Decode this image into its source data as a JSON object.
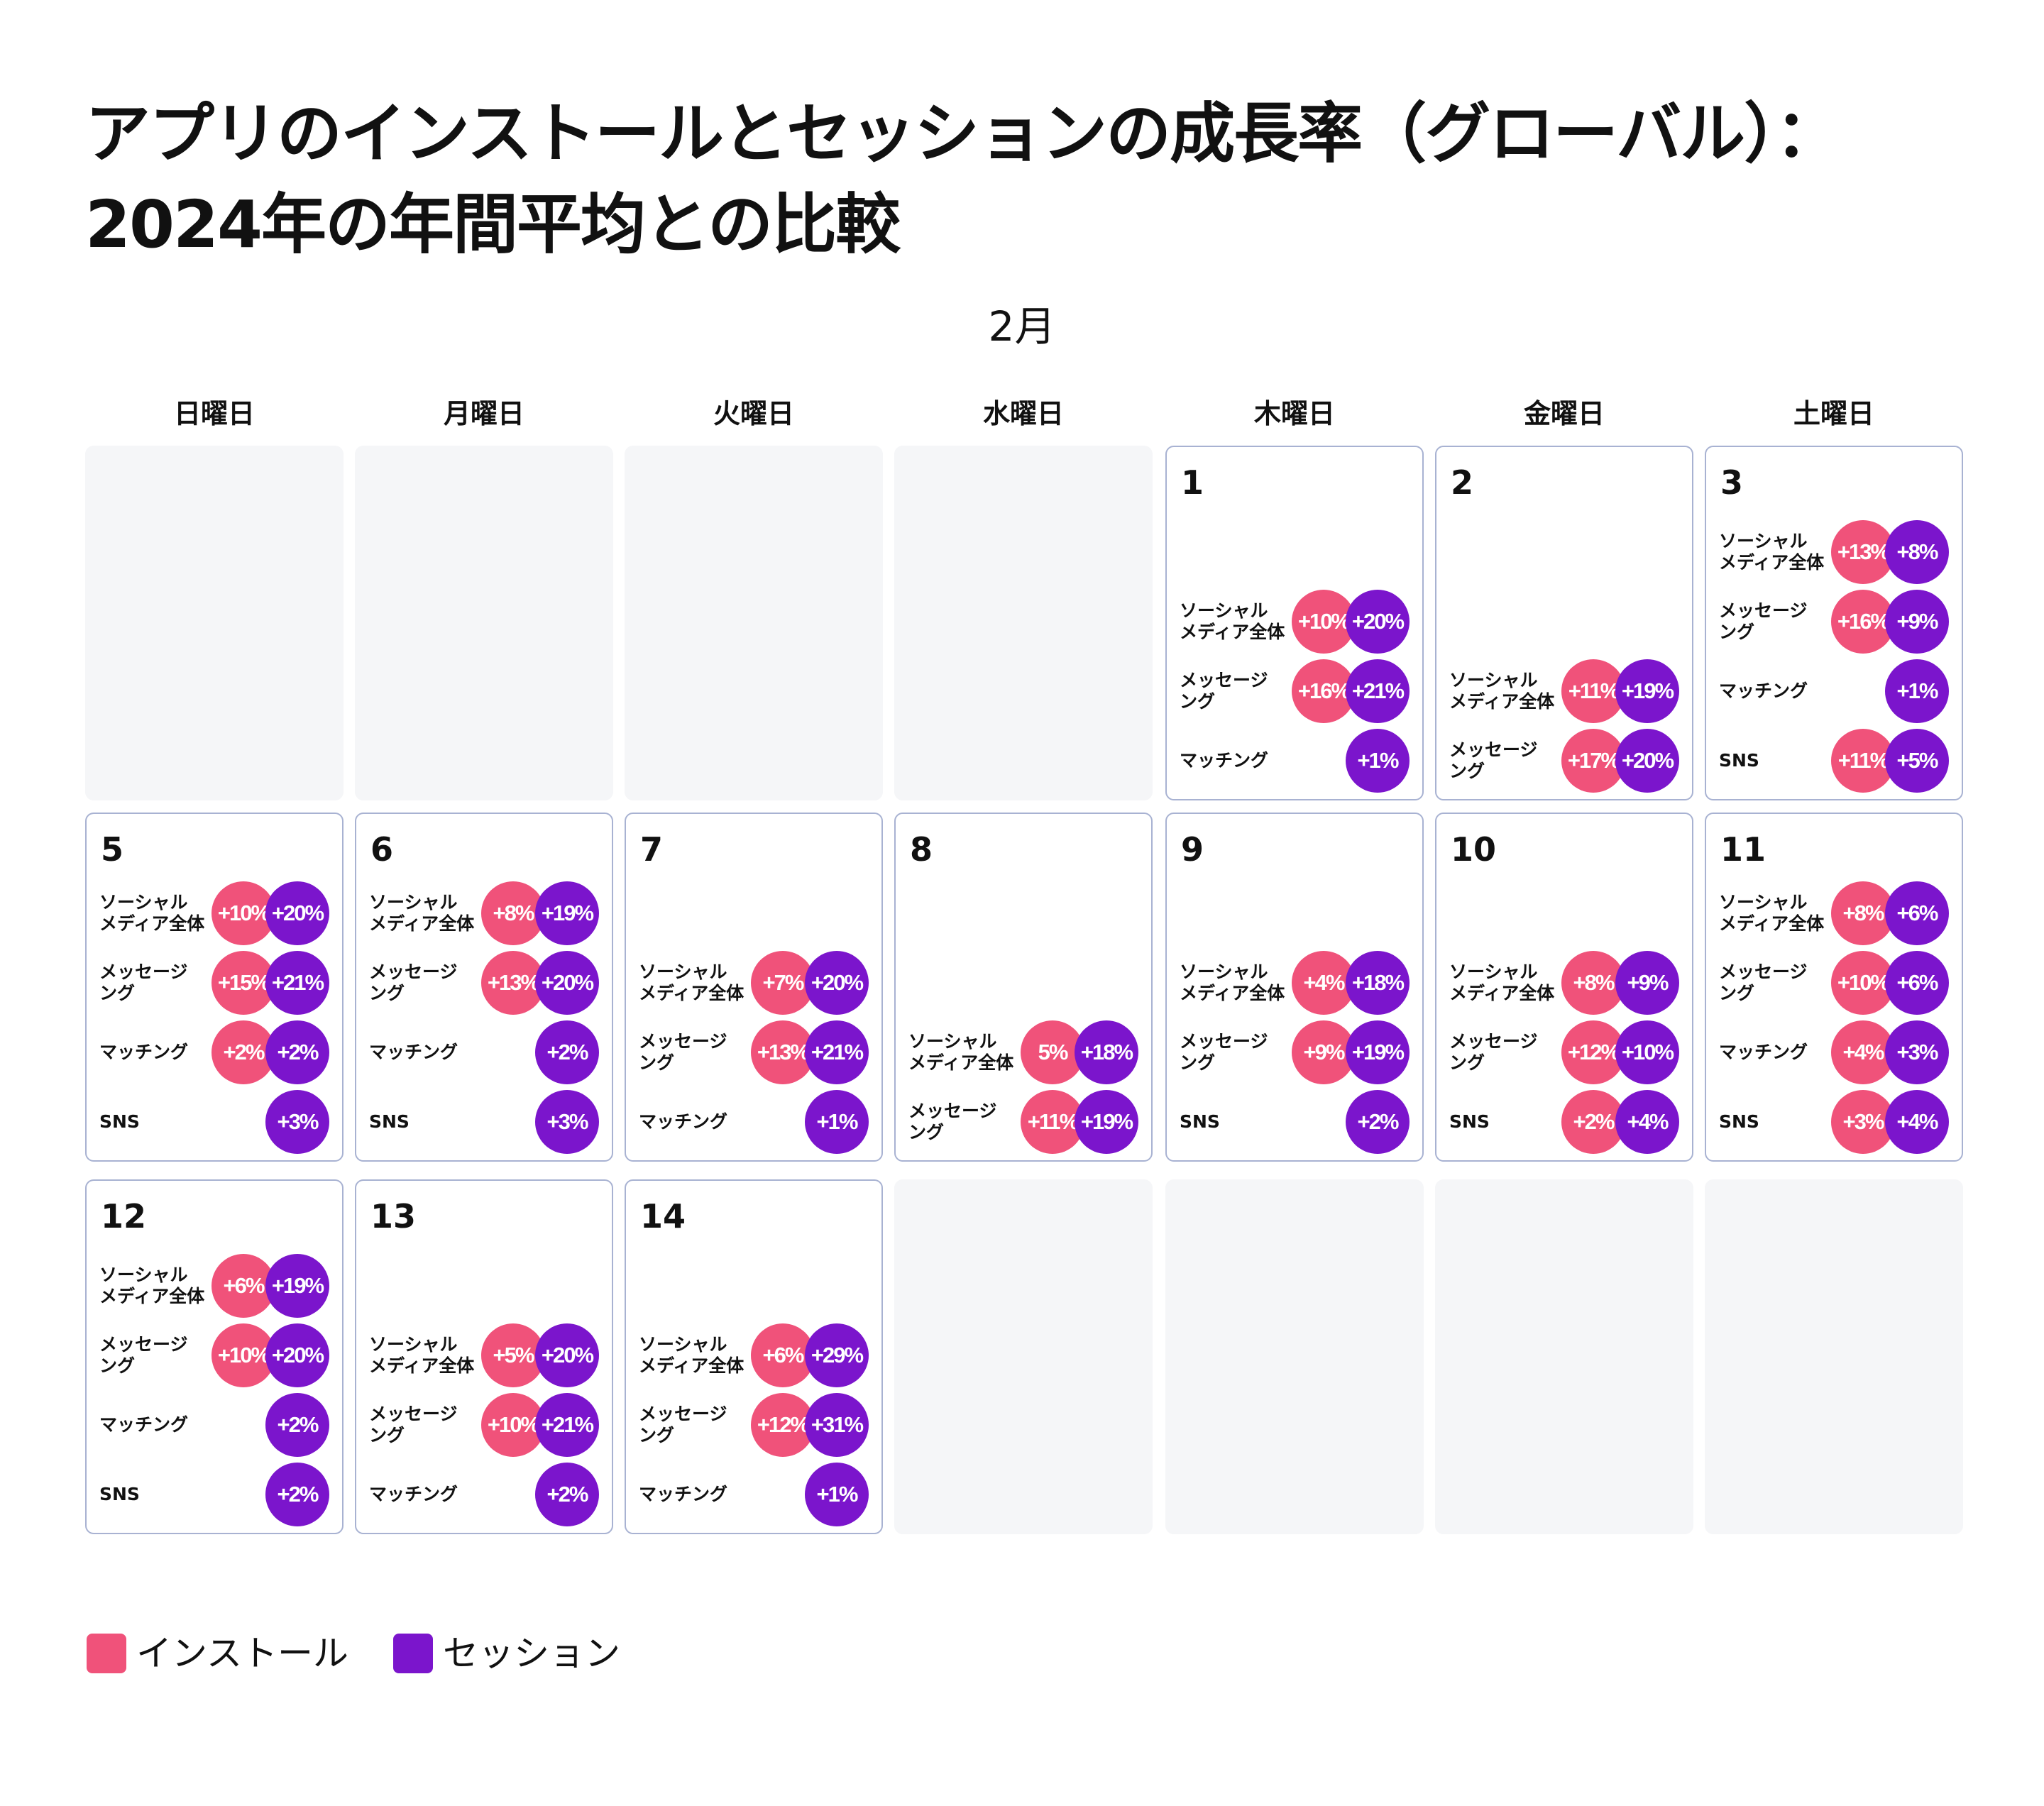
{
  "title_lines": [
    "アプリのインストールとセッションの成長率（グローバル）：",
    "2024年の年間平均との比較"
  ],
  "month": "2月",
  "weekdays": [
    "日曜日",
    "月曜日",
    "火曜日",
    "水曜日",
    "木曜日",
    "金曜日",
    "土曜日"
  ],
  "colors": {
    "install": "#f0527a",
    "session": "#7b15cc",
    "empty_cell": "#f5f6f8",
    "cell_border": "#a8b2d2"
  },
  "legend": [
    {
      "label": "インストール",
      "color": "#f0527a"
    },
    {
      "label": "セッション",
      "color": "#7b15cc"
    }
  ],
  "chart_data": {
    "type": "table",
    "title": "アプリのインストールとセッションの成長率（グローバル）：2024年の年間平均との比較",
    "month": "2月",
    "category_labels": {
      "social": "ソーシャル\nメディア全体",
      "messaging": "メッセージ\nング",
      "matching": "マッチング",
      "sns": "SNS"
    },
    "series": [
      "インストール",
      "セッション"
    ],
    "weeks": [
      [
        null,
        null,
        null,
        null,
        {
          "day": "1",
          "rows": [
            {
              "cat": "social",
              "install": "+10%",
              "session": "+20%"
            },
            {
              "cat": "messaging",
              "install": "+16%",
              "session": "+21%"
            },
            {
              "cat": "matching",
              "install": null,
              "session": "+1%"
            }
          ]
        },
        {
          "day": "2",
          "rows": [
            {
              "cat": "social",
              "install": "+11%",
              "session": "+19%"
            },
            {
              "cat": "messaging",
              "install": "+17%",
              "session": "+20%"
            }
          ]
        },
        {
          "day": "3",
          "rows": [
            {
              "cat": "social",
              "install": "+13%",
              "session": "+8%"
            },
            {
              "cat": "messaging",
              "install": "+16%",
              "session": "+9%"
            },
            {
              "cat": "matching",
              "install": null,
              "session": "+1%"
            },
            {
              "cat": "sns",
              "install": "+11%",
              "session": "+5%"
            }
          ]
        }
      ],
      [
        {
          "day": "5",
          "rows": [
            {
              "cat": "social",
              "install": "+10%",
              "session": "+20%"
            },
            {
              "cat": "messaging",
              "install": "+15%",
              "session": "+21%"
            },
            {
              "cat": "matching",
              "install": "+2%",
              "session": "+2%"
            },
            {
              "cat": "sns",
              "install": null,
              "session": "+3%"
            }
          ]
        },
        {
          "day": "6",
          "rows": [
            {
              "cat": "social",
              "install": "+8%",
              "session": "+19%"
            },
            {
              "cat": "messaging",
              "install": "+13%",
              "session": "+20%"
            },
            {
              "cat": "matching",
              "install": null,
              "session": "+2%"
            },
            {
              "cat": "sns",
              "install": null,
              "session": "+3%"
            }
          ]
        },
        {
          "day": "7",
          "rows": [
            {
              "cat": "social",
              "install": "+7%",
              "session": "+20%"
            },
            {
              "cat": "messaging",
              "install": "+13%",
              "session": "+21%"
            },
            {
              "cat": "matching",
              "install": null,
              "session": "+1%"
            }
          ]
        },
        {
          "day": "8",
          "rows": [
            {
              "cat": "social",
              "install": "5%",
              "session": "+18%"
            },
            {
              "cat": "messaging",
              "install": "+11%",
              "session": "+19%"
            }
          ]
        },
        {
          "day": "9",
          "rows": [
            {
              "cat": "social",
              "install": "+4%",
              "session": "+18%"
            },
            {
              "cat": "messaging",
              "install": "+9%",
              "session": "+19%"
            },
            {
              "cat": "sns",
              "install": null,
              "session": "+2%"
            }
          ]
        },
        {
          "day": "10",
          "rows": [
            {
              "cat": "social",
              "install": "+8%",
              "session": "+9%"
            },
            {
              "cat": "messaging",
              "install": "+12%",
              "session": "+10%"
            },
            {
              "cat": "sns",
              "install": "+2%",
              "session": "+4%"
            }
          ]
        },
        {
          "day": "11",
          "rows": [
            {
              "cat": "social",
              "install": "+8%",
              "session": "+6%"
            },
            {
              "cat": "messaging",
              "install": "+10%",
              "session": "+6%"
            },
            {
              "cat": "matching",
              "install": "+4%",
              "session": "+3%"
            },
            {
              "cat": "sns",
              "install": "+3%",
              "session": "+4%"
            }
          ]
        }
      ],
      [
        {
          "day": "12",
          "rows": [
            {
              "cat": "social",
              "install": "+6%",
              "session": "+19%"
            },
            {
              "cat": "messaging",
              "install": "+10%",
              "session": "+20%"
            },
            {
              "cat": "matching",
              "install": null,
              "session": "+2%"
            },
            {
              "cat": "sns",
              "install": null,
              "session": "+2%"
            }
          ]
        },
        {
          "day": "13",
          "rows": [
            {
              "cat": "social",
              "install": "+5%",
              "session": "+20%"
            },
            {
              "cat": "messaging",
              "install": "+10%",
              "session": "+21%"
            },
            {
              "cat": "matching",
              "install": null,
              "session": "+2%"
            }
          ]
        },
        {
          "day": "14",
          "rows": [
            {
              "cat": "social",
              "install": "+6%",
              "session": "+29%"
            },
            {
              "cat": "messaging",
              "install": "+12%",
              "session": "+31%"
            },
            {
              "cat": "matching",
              "install": null,
              "session": "+1%"
            }
          ]
        },
        null,
        null,
        null,
        null
      ]
    ]
  }
}
